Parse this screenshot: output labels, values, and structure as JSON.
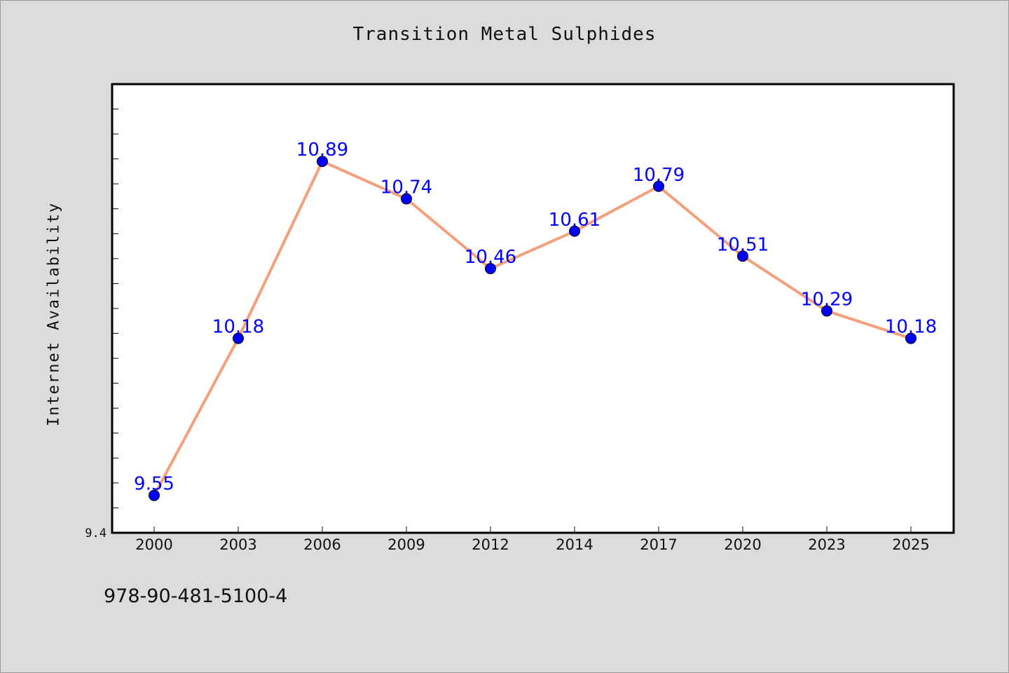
{
  "chart_data": {
    "type": "line",
    "title": "Transition Metal Sulphides",
    "xlabel": "",
    "ylabel": "Internet Availability",
    "categories": [
      "2000",
      "2003",
      "2006",
      "2009",
      "2012",
      "2014",
      "2017",
      "2020",
      "2023",
      "2025"
    ],
    "series": [
      {
        "values": [
          9.55,
          10.18,
          10.89,
          10.74,
          10.46,
          10.61,
          10.79,
          10.51,
          10.29,
          10.18
        ],
        "line_color": "#f4a07c",
        "marker_color": "#0000ff"
      }
    ],
    "ylim": [
      9.4,
      11.2
    ],
    "y_tick_labels": [
      "9.4"
    ],
    "data_labels": [
      "9.55",
      "10.18",
      "10.89",
      "10.74",
      "10.46",
      "10.61",
      "10.79",
      "10.51",
      "10.29",
      "10.18"
    ],
    "grid": false,
    "legend": "none",
    "background": "#dcdcdc",
    "plot_background": "#ffffff"
  },
  "footer": {
    "isbn": "978-90-481-5100-4"
  }
}
